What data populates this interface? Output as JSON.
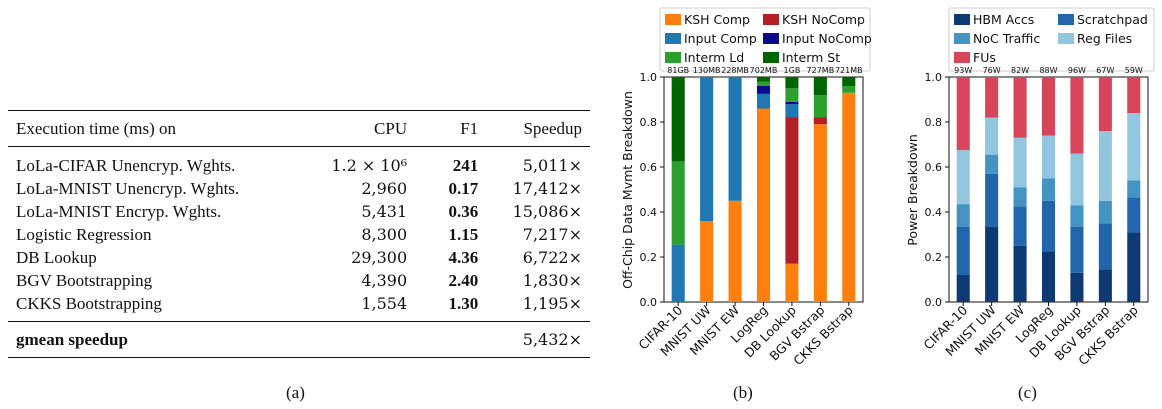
{
  "table": {
    "headers": [
      "Execution time (ms) on",
      "CPU",
      "F1",
      "Speedup"
    ],
    "rows": [
      {
        "name": "LoLa-CIFAR Unencryp. Wghts.",
        "cpu": "1.2 × 10⁶",
        "f1": "241",
        "speedup": "5,011×"
      },
      {
        "name": "LoLa-MNIST Unencryp. Wghts.",
        "cpu": "2,960",
        "f1": "0.17",
        "speedup": "17,412×"
      },
      {
        "name": "LoLa-MNIST Encryp. Wghts.",
        "cpu": "5,431",
        "f1": "0.36",
        "speedup": "15,086×"
      },
      {
        "name": "Logistic Regression",
        "cpu": "8,300",
        "f1": "1.15",
        "speedup": "7,217×"
      },
      {
        "name": "DB Lookup",
        "cpu": "29,300",
        "f1": "4.36",
        "speedup": "6,722×"
      },
      {
        "name": "BGV Bootstrapping",
        "cpu": "4,390",
        "f1": "2.40",
        "speedup": "1,830×"
      },
      {
        "name": "CKKS Bootstrapping",
        "cpu": "1,554",
        "f1": "1.30",
        "speedup": "1,195×"
      }
    ],
    "total": {
      "label": "gmean speedup",
      "speedup": "5,432×"
    }
  },
  "captions": {
    "a": "(a)",
    "b": "(b)",
    "c": "(c)"
  },
  "chart_data": [
    {
      "type": "bar",
      "stacked": true,
      "ylabel": "Off-Chip Data Mvmt Breakdown",
      "ylim": [
        0,
        1.0
      ],
      "yticks": [
        "0.0",
        "0.2",
        "0.4",
        "0.6",
        "0.8",
        "1.0"
      ],
      "categories": [
        "CIFAR-10",
        "MNIST UW",
        "MNIST EW",
        "LogReg",
        "DB Lookup",
        "BGV Bstrap",
        "CKKS Bstrap"
      ],
      "top_labels": [
        "81GB",
        "130MB",
        "228MB",
        "702MB",
        "1GB",
        "727MB",
        "721MB"
      ],
      "legend_position": "top",
      "series": [
        {
          "name": "KSH Comp",
          "color": "#ff7f0e",
          "values": [
            0,
            0.36,
            0.45,
            0.86,
            0.17,
            0.79,
            0.93
          ]
        },
        {
          "name": "KSH NoComp",
          "color": "#b22025",
          "values": [
            0,
            0,
            0,
            0,
            0.65,
            0.03,
            0
          ]
        },
        {
          "name": "Input Comp",
          "color": "#1f77b4",
          "values": [
            0.255,
            0.64,
            0.55,
            0.065,
            0.06,
            0,
            0
          ]
        },
        {
          "name": "Input NoComp",
          "color": "#0a0a8c",
          "values": [
            0,
            0,
            0,
            0.035,
            0.01,
            0,
            0
          ]
        },
        {
          "name": "Interm Ld",
          "color": "#2ca02c",
          "values": [
            0.37,
            0,
            0,
            0.02,
            0.06,
            0.1,
            0.03
          ]
        },
        {
          "name": "Interm St",
          "color": "#006400",
          "values": [
            0.375,
            0,
            0,
            0.02,
            0.05,
            0.08,
            0.04
          ]
        }
      ]
    },
    {
      "type": "bar",
      "stacked": true,
      "ylabel": "Power Breakdown",
      "ylim": [
        0,
        1.0
      ],
      "yticks": [
        "0.0",
        "0.2",
        "0.4",
        "0.6",
        "0.8",
        "1.0"
      ],
      "categories": [
        "CIFAR-10",
        "MNIST UW",
        "MNIST EW",
        "LogReg",
        "DB Lookup",
        "BGV Bstrap",
        "CKKS Bstrap"
      ],
      "top_labels": [
        "93W",
        "76W",
        "82W",
        "88W",
        "96W",
        "67W",
        "59W"
      ],
      "legend_position": "top",
      "series": [
        {
          "name": "HBM Accs",
          "color": "#0d3a73",
          "values": [
            0.12,
            0.335,
            0.25,
            0.225,
            0.13,
            0.145,
            0.31
          ]
        },
        {
          "name": "Scratchpad",
          "color": "#2166ac",
          "values": [
            0.215,
            0.235,
            0.175,
            0.225,
            0.205,
            0.205,
            0.155
          ]
        },
        {
          "name": "NoC Traffic",
          "color": "#4393c3",
          "values": [
            0.1,
            0.085,
            0.085,
            0.1,
            0.095,
            0.1,
            0.075
          ]
        },
        {
          "name": "Reg Files",
          "color": "#92c5de",
          "values": [
            0.24,
            0.165,
            0.22,
            0.19,
            0.23,
            0.31,
            0.3
          ]
        },
        {
          "name": "FUs",
          "color": "#d6455a",
          "values": [
            0.325,
            0.18,
            0.27,
            0.26,
            0.34,
            0.24,
            0.16
          ]
        }
      ]
    }
  ]
}
